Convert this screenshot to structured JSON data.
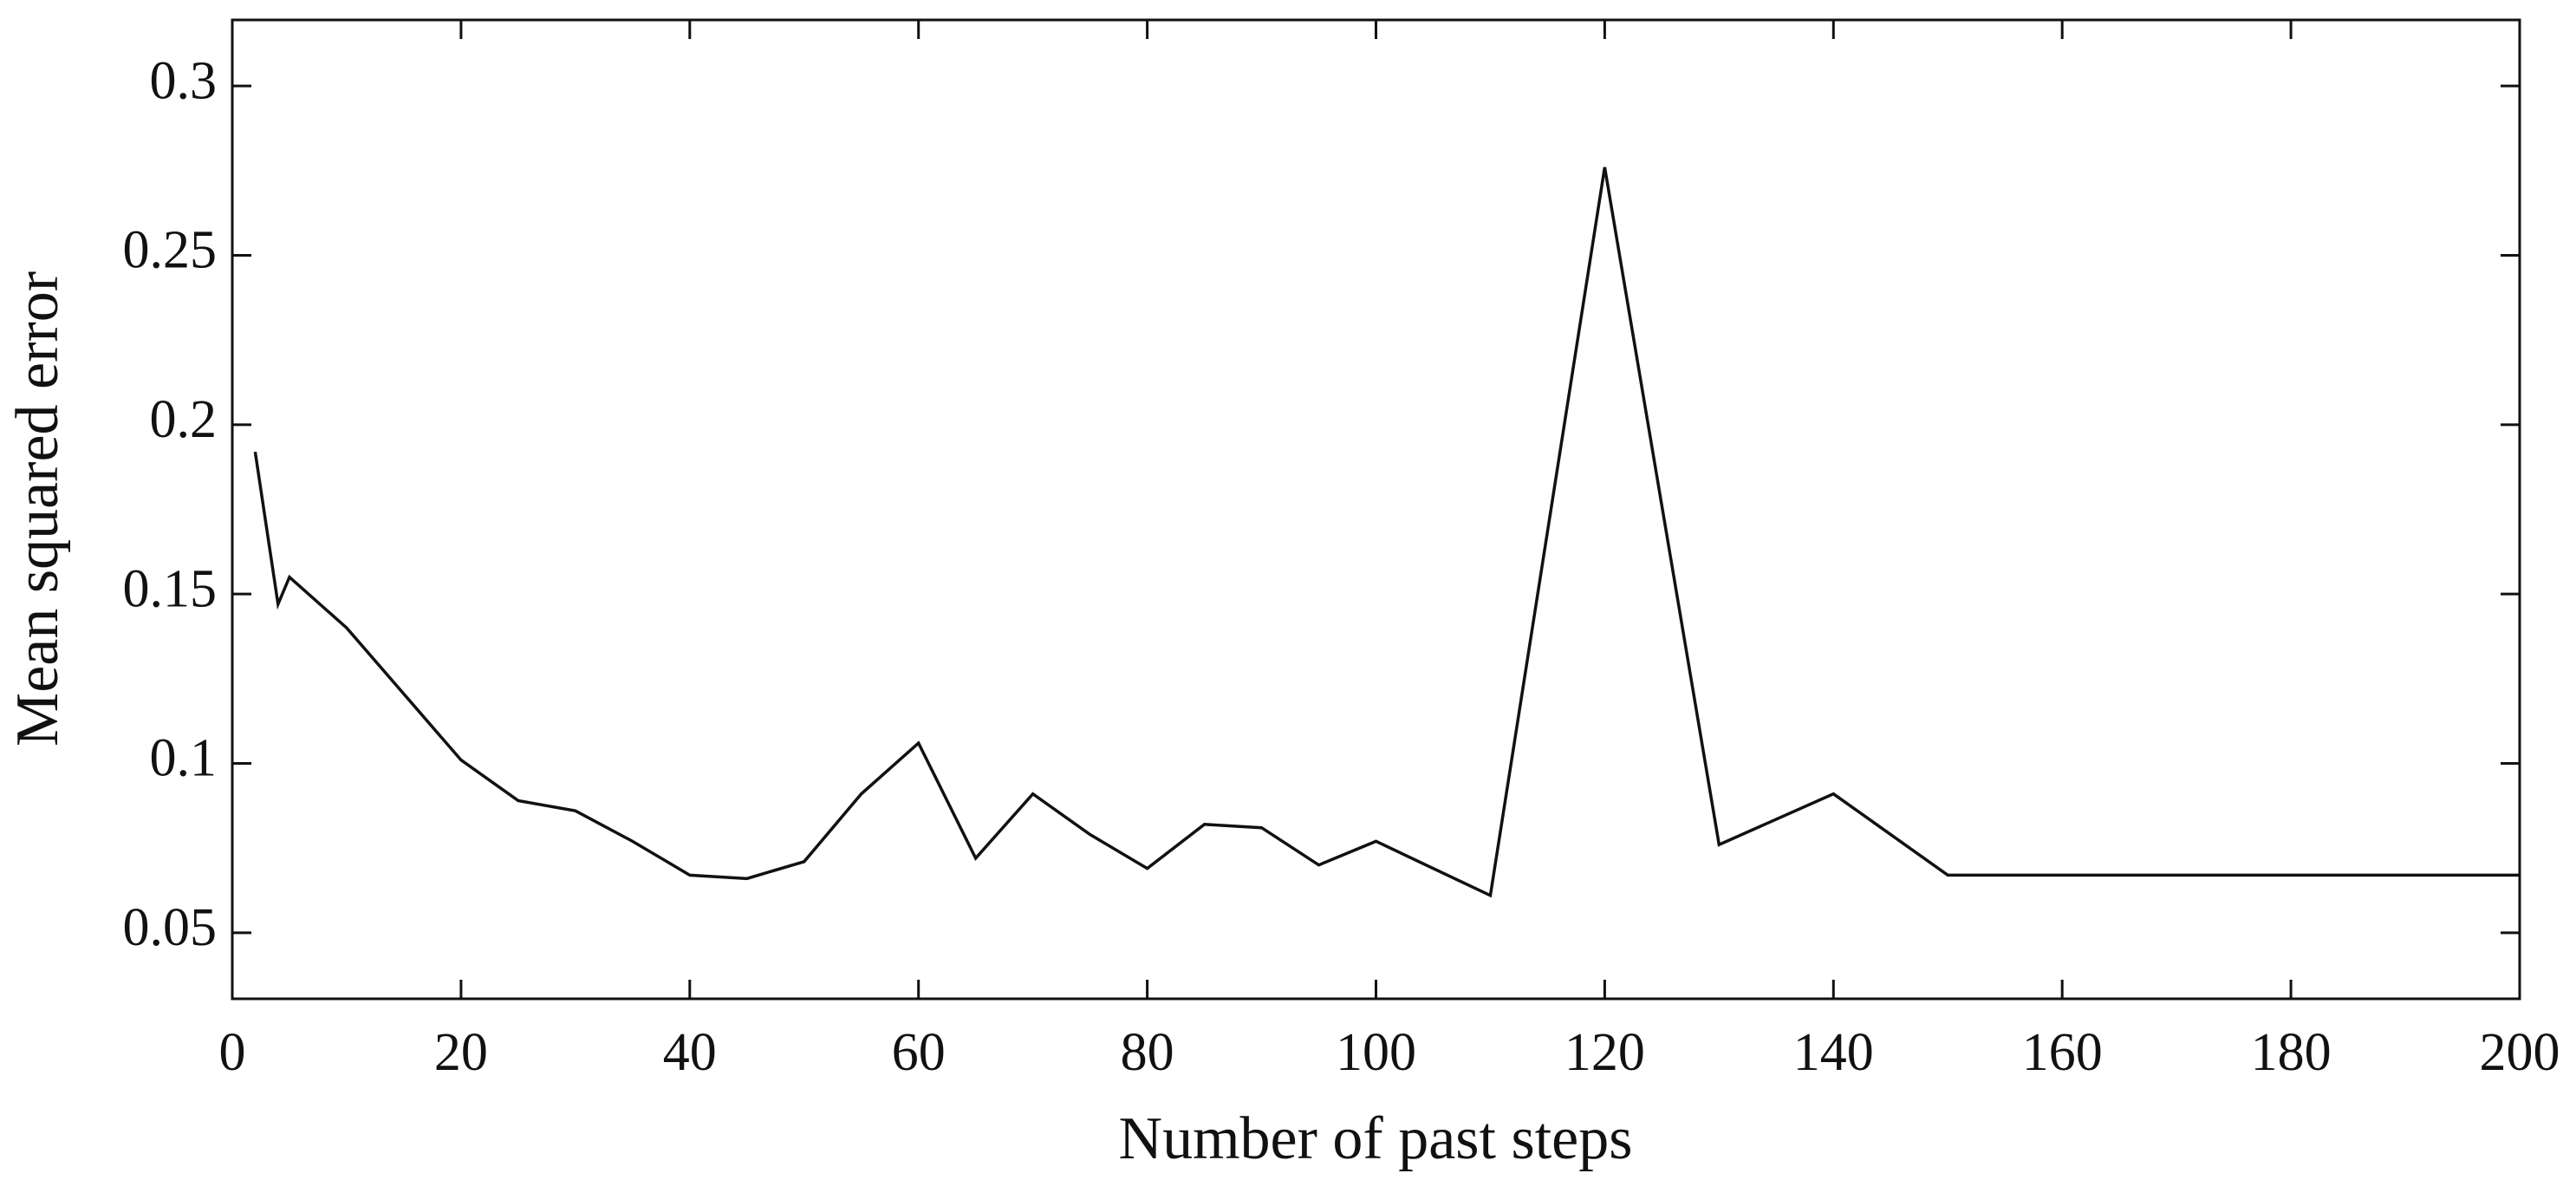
{
  "chart_data": {
    "type": "line",
    "x_label": "Number of past steps",
    "y_label": "Mean squared error",
    "x": [
      2,
      4,
      5,
      10,
      20,
      25,
      30,
      35,
      40,
      45,
      50,
      55,
      60,
      65,
      70,
      75,
      80,
      85,
      90,
      95,
      100,
      110,
      120,
      130,
      140,
      150,
      160,
      170,
      180,
      190,
      200
    ],
    "series": [
      {
        "color": "#111111",
        "values": [
          0.192,
          0.147,
          0.155,
          0.14,
          0.101,
          0.089,
          0.086,
          0.077,
          0.067,
          0.066,
          0.071,
          0.091,
          0.106,
          0.072,
          0.091,
          0.079,
          0.069,
          0.082,
          0.081,
          0.07,
          0.077,
          0.061,
          0.276,
          0.076,
          0.091,
          0.067,
          0.067,
          0.067,
          0.067,
          0.067,
          0.067
        ]
      }
    ],
    "xlim": [
      0,
      200
    ],
    "ylim": [
      0.0305,
      0.3195
    ],
    "xticks": [
      0,
      20,
      40,
      60,
      80,
      100,
      120,
      140,
      160,
      180,
      200
    ],
    "yticks": [
      0.05,
      0.1,
      0.15,
      0.2,
      0.25,
      0.3
    ],
    "grid": false
  }
}
